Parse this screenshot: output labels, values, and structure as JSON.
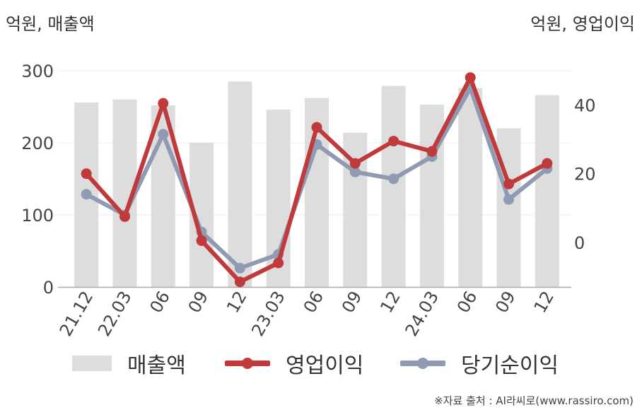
{
  "units": {
    "left": "억원, 매출액",
    "right": "억원, 영업이익"
  },
  "source": "※자료 출처 : AI라씨로(www.rassiro.com)",
  "colors": {
    "sales": "#dddddd",
    "operating_profit": "#c0393b",
    "net_income": "#8f9bb3",
    "grid": "#eeeeee",
    "axis": "#aaaaaa"
  },
  "chart_data": {
    "type": "bar",
    "categories": [
      "21.12",
      "22.03",
      "06",
      "09",
      "12",
      "23.03",
      "06",
      "09",
      "12",
      "24.03",
      "06",
      "09",
      "12"
    ],
    "y_left": {
      "ticks": [
        0,
        100,
        200,
        300
      ],
      "ylim": [
        0,
        300
      ]
    },
    "y_right": {
      "ticks": [
        0,
        20,
        40
      ],
      "ylim": [
        -13,
        50
      ]
    },
    "series": [
      {
        "name": "매출액",
        "type": "bar",
        "axis": "left",
        "values": [
          256,
          260,
          252,
          200,
          285,
          246,
          262,
          214,
          279,
          253,
          276,
          220,
          266
        ]
      },
      {
        "name": "영업이익",
        "type": "line",
        "axis": "right",
        "values": [
          20,
          7.5,
          40.5,
          0.5,
          -11.5,
          -6,
          33.5,
          23,
          29.5,
          26.5,
          48,
          17,
          23
        ]
      },
      {
        "name": "당기순이익",
        "type": "line",
        "axis": "right",
        "values": [
          14,
          8,
          31.5,
          3,
          -7.5,
          -3.5,
          28.5,
          20.5,
          18.5,
          25,
          45,
          12.5,
          21.5
        ]
      }
    ],
    "grid": true,
    "legend_position": "bottom"
  }
}
